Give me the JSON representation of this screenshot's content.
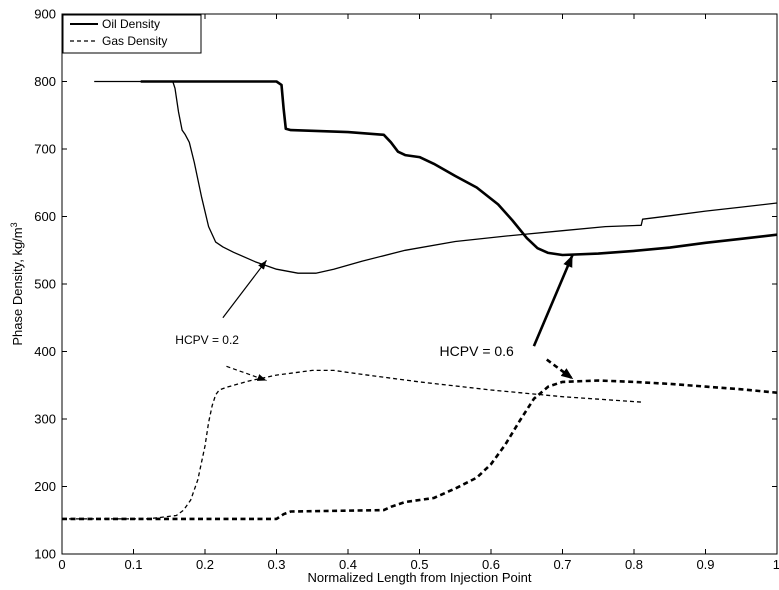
{
  "chart_data": {
    "type": "line",
    "xlabel": "Normalized Length from Injection Point",
    "ylabel": "Phase Density, kg/m",
    "ylabel_sup": "3",
    "xlim": [
      0,
      1
    ],
    "ylim": [
      100,
      900
    ],
    "x_ticks": [
      "0",
      "0.1",
      "0.2",
      "0.3",
      "0.4",
      "0.5",
      "0.6",
      "0.7",
      "0.8",
      "0.9",
      "1"
    ],
    "y_ticks": [
      "100",
      "200",
      "300",
      "400",
      "500",
      "600",
      "700",
      "800",
      "900"
    ],
    "grid": false,
    "legend": {
      "placement": "top-left",
      "entries": [
        {
          "label": "Oil Density",
          "style": "solid"
        },
        {
          "label": "Gas Density",
          "style": "dashed"
        }
      ]
    },
    "series": [
      {
        "id": "oil-hcpv-0.2",
        "phase": "oil",
        "hcpv": 0.2,
        "x": [
          0.045,
          0.1,
          0.155,
          0.158,
          0.163,
          0.168,
          0.172,
          0.178,
          0.185,
          0.195,
          0.205,
          0.215,
          0.225,
          0.24,
          0.27,
          0.3,
          0.33,
          0.355,
          0.38,
          0.42,
          0.48,
          0.55,
          0.62,
          0.7,
          0.76,
          0.81,
          0.812,
          0.85,
          0.9,
          0.95,
          1.0
        ],
        "y": [
          800,
          800,
          800,
          790,
          755,
          728,
          722,
          710,
          680,
          630,
          585,
          562,
          555,
          547,
          533,
          522,
          516,
          516,
          522,
          534,
          550,
          563,
          571,
          579,
          585,
          587,
          596,
          601,
          608,
          614,
          620
        ]
      },
      {
        "id": "gas-hcpv-0.2",
        "phase": "gas",
        "hcpv": 0.2,
        "x": [
          0.0,
          0.12,
          0.16,
          0.17,
          0.18,
          0.19,
          0.2,
          0.205,
          0.21,
          0.215,
          0.22,
          0.23,
          0.26,
          0.3,
          0.35,
          0.38,
          0.42,
          0.5,
          0.6,
          0.7,
          0.81
        ],
        "y": [
          152,
          152,
          157,
          165,
          180,
          210,
          260,
          295,
          320,
          336,
          343,
          347,
          356,
          365,
          372,
          372,
          366,
          355,
          343,
          333,
          325
        ]
      },
      {
        "id": "oil-hcpv-0.6",
        "phase": "oil",
        "hcpv": 0.6,
        "x": [
          0.11,
          0.2,
          0.3,
          0.307,
          0.31,
          0.313,
          0.32,
          0.35,
          0.4,
          0.45,
          0.46,
          0.47,
          0.48,
          0.5,
          0.52,
          0.55,
          0.58,
          0.61,
          0.63,
          0.65,
          0.665,
          0.68,
          0.7,
          0.75,
          0.8,
          0.85,
          0.9,
          0.95,
          1.0
        ],
        "y": [
          800,
          800,
          800,
          795,
          760,
          730,
          728,
          727,
          725,
          721,
          710,
          696,
          691,
          688,
          678,
          660,
          643,
          618,
          594,
          568,
          553,
          546,
          543,
          545,
          549,
          554,
          561,
          567,
          573
        ]
      },
      {
        "id": "gas-hcpv-0.6",
        "phase": "gas",
        "hcpv": 0.6,
        "x": [
          0.0,
          0.2,
          0.3,
          0.31,
          0.32,
          0.45,
          0.46,
          0.48,
          0.52,
          0.55,
          0.58,
          0.6,
          0.62,
          0.64,
          0.66,
          0.68,
          0.7,
          0.75,
          0.8,
          0.85,
          0.9,
          0.95,
          1.0
        ],
        "y": [
          152,
          152,
          152,
          159,
          163,
          165,
          170,
          177,
          183,
          197,
          213,
          233,
          262,
          297,
          330,
          348,
          355,
          357,
          355,
          352,
          348,
          344,
          339
        ]
      }
    ],
    "annotations": [
      {
        "id": "hcpv-0.2",
        "text": "HCPV = 0.2",
        "text_at": [
          0.203,
          411
        ],
        "arrows": [
          {
            "from": [
              0.225,
              450
            ],
            "to": [
              0.286,
              535
            ],
            "style": "solid"
          },
          {
            "from": [
              0.23,
              378
            ],
            "to": [
              0.286,
              357
            ],
            "style": "dashed"
          }
        ]
      },
      {
        "id": "hcpv-0.6",
        "text": "HCPV = 0.6",
        "text_at": [
          0.58,
          393
        ],
        "arrows": [
          {
            "from": [
              0.66,
              408
            ],
            "to": [
              0.714,
              543
            ],
            "style": "solid"
          },
          {
            "from": [
              0.678,
              388
            ],
            "to": [
              0.715,
              359
            ],
            "style": "dashed"
          }
        ]
      }
    ]
  }
}
